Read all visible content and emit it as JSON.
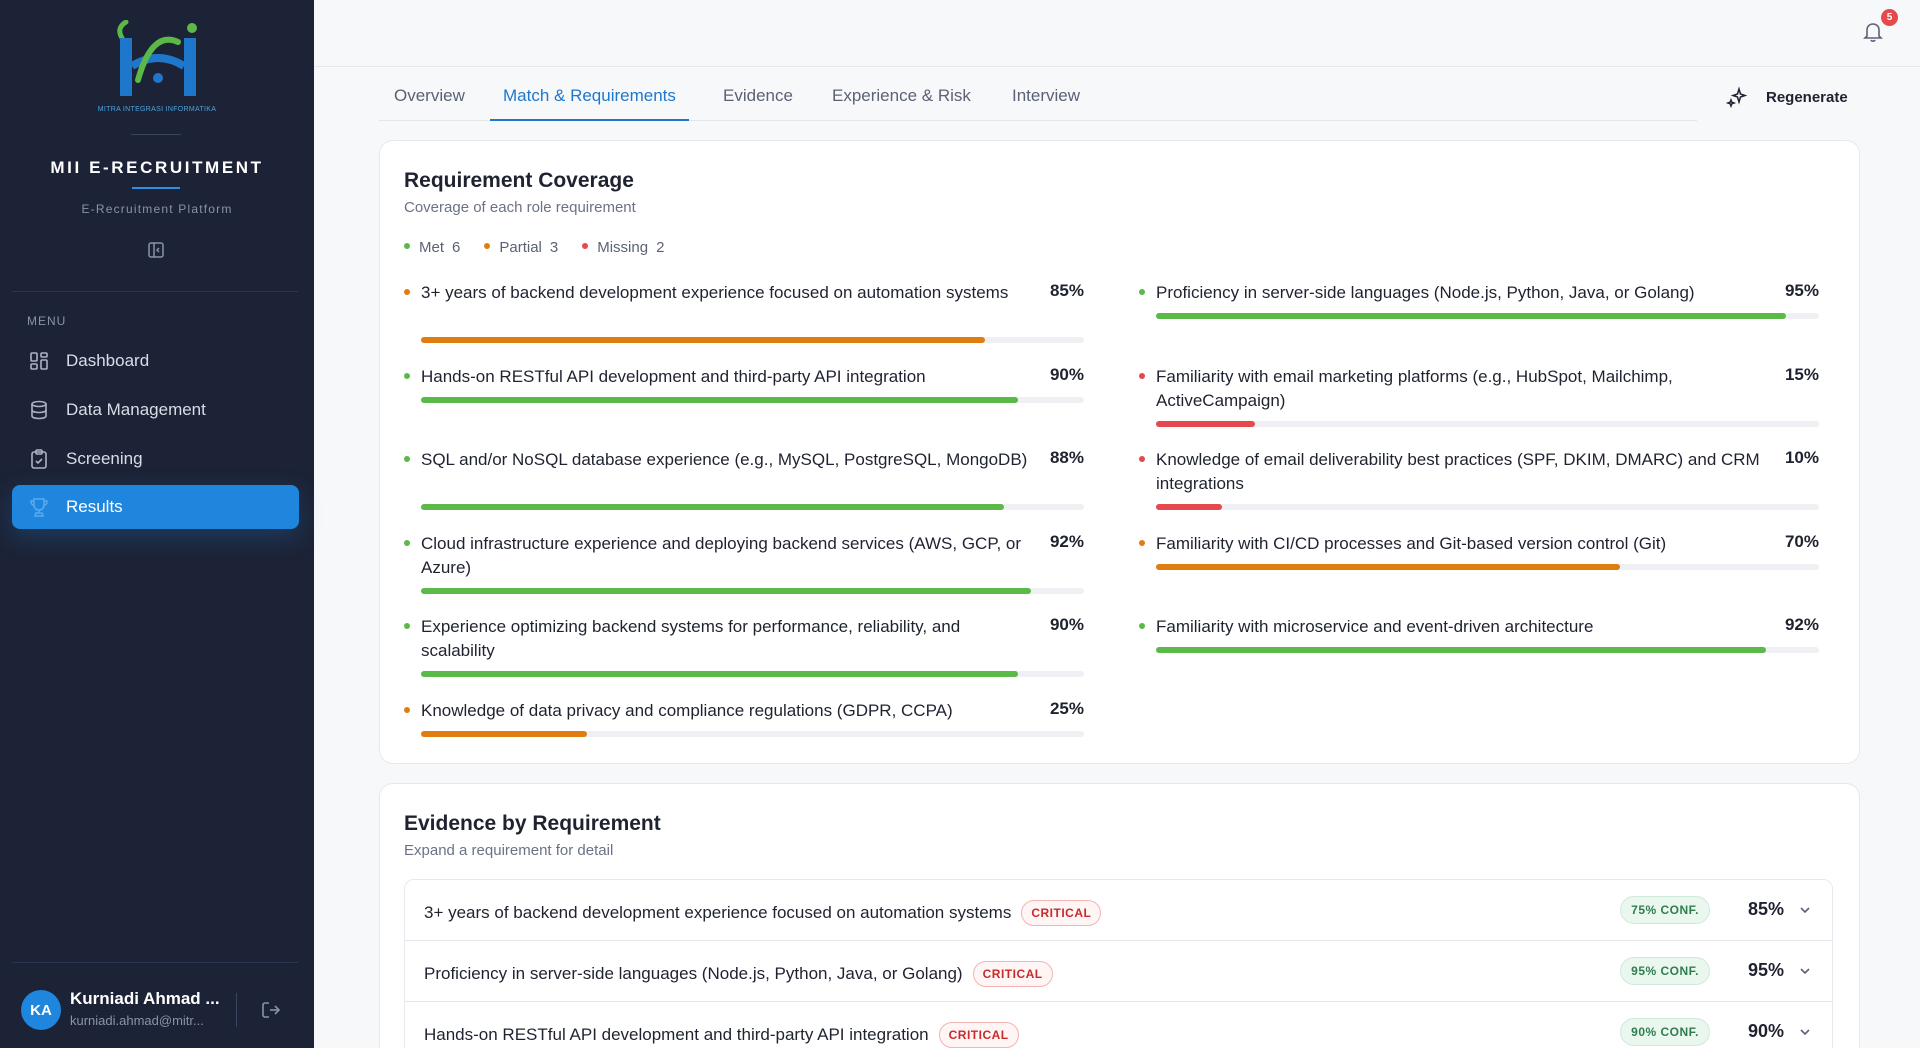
{
  "sidebar": {
    "logo_caption": "MITRA INTEGRASI INFORMATIKA",
    "brand": "MII E-RECRUITMENT",
    "brand_sub": "E-Recruitment Platform",
    "menu_label": "MENU",
    "items": [
      {
        "label": "Dashboard",
        "icon": "dashboard-icon"
      },
      {
        "label": "Data Management",
        "icon": "database-icon"
      },
      {
        "label": "Screening",
        "icon": "clipboard-icon"
      },
      {
        "label": "Results",
        "icon": "trophy-icon",
        "active": true
      }
    ],
    "user": {
      "initials": "KA",
      "name": "Kurniadi Ahmad ...",
      "email": "kurniadi.ahmad@mitr..."
    }
  },
  "topbar": {
    "notifications": "5"
  },
  "tabs": [
    {
      "label": "Overview"
    },
    {
      "label": "Match & Requirements",
      "active": true
    },
    {
      "label": "Evidence"
    },
    {
      "label": "Experience & Risk"
    },
    {
      "label": "Interview"
    }
  ],
  "regenerate_label": "Regenerate",
  "coverage": {
    "title": "Requirement Coverage",
    "subtitle": "Coverage of each role requirement",
    "legend": [
      {
        "label": "Met",
        "count": "6",
        "color": "#5bb947"
      },
      {
        "label": "Partial",
        "count": "3",
        "color": "#e07d10"
      },
      {
        "label": "Missing",
        "count": "2",
        "color": "#e5484d"
      }
    ],
    "left": [
      {
        "text": "3+ years of backend development experience focused on automation systems",
        "pct": "85%",
        "value": 85,
        "status": "partial"
      },
      {
        "text": "Hands-on RESTful API development and third-party API integration",
        "pct": "90%",
        "value": 90,
        "status": "met"
      },
      {
        "text": "SQL and/or NoSQL database experience (e.g., MySQL, PostgreSQL, MongoDB)",
        "pct": "88%",
        "value": 88,
        "status": "met"
      },
      {
        "text": "Cloud infrastructure experience and deploying backend services (AWS, GCP, or Azure)",
        "pct": "92%",
        "value": 92,
        "status": "met"
      },
      {
        "text": "Experience optimizing backend systems for performance, reliability, and scalability",
        "pct": "90%",
        "value": 90,
        "status": "met"
      },
      {
        "text": "Knowledge of data privacy and compliance regulations (GDPR, CCPA)",
        "pct": "25%",
        "value": 25,
        "status": "partial"
      }
    ],
    "right": [
      {
        "text": "Proficiency in server-side languages (Node.js, Python, Java, or Golang)",
        "pct": "95%",
        "value": 95,
        "status": "met"
      },
      {
        "text": "Familiarity with email marketing platforms (e.g., HubSpot, Mailchimp, ActiveCampaign)",
        "pct": "15%",
        "value": 15,
        "status": "missing"
      },
      {
        "text": "Knowledge of email deliverability best practices (SPF, DKIM, DMARC) and CRM integrations",
        "pct": "10%",
        "value": 10,
        "status": "missing"
      },
      {
        "text": "Familiarity with CI/CD processes and Git-based version control (Git)",
        "pct": "70%",
        "value": 70,
        "status": "partial"
      },
      {
        "text": "Familiarity with microservice and event-driven architecture",
        "pct": "92%",
        "value": 92,
        "status": "met"
      }
    ]
  },
  "evidence": {
    "title": "Evidence by Requirement",
    "subtitle": "Expand a requirement for detail",
    "critical_label": "CRITICAL",
    "rows": [
      {
        "text": "3+ years of backend development experience focused on automation systems",
        "conf": "75% CONF.",
        "pct": "85%"
      },
      {
        "text": "Proficiency in server-side languages (Node.js, Python, Java, or Golang)",
        "conf": "95% CONF.",
        "pct": "95%"
      },
      {
        "text": "Hands-on RESTful API development and third-party API integration",
        "conf": "90% CONF.",
        "pct": "90%"
      }
    ]
  }
}
